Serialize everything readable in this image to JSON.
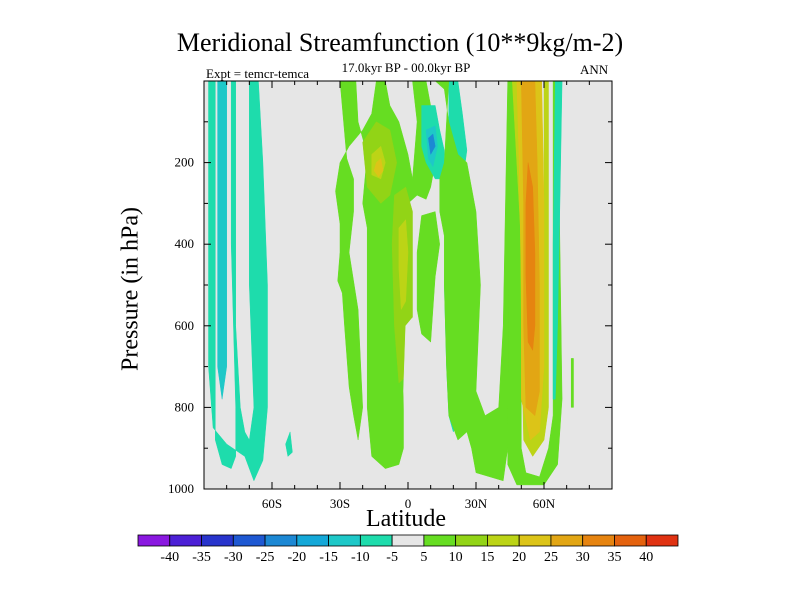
{
  "chart_data": {
    "type": "heatmap",
    "title": "Meridional Streamfunction (10**9kg/m-2)",
    "subtitle": "17.0kyr BP - 00.0kyr BP",
    "left_label": "Expt = temcr-temca",
    "right_label": "ANN",
    "xlabel": "Latitude",
    "ylabel": "Pressure (in hPa)",
    "xlim": [
      -90,
      90
    ],
    "ylim": [
      1000,
      0
    ],
    "x_ticks": [
      -60,
      -30,
      0,
      30,
      60
    ],
    "x_tick_labels": [
      "60S",
      "30S",
      "0",
      "30N",
      "60N"
    ],
    "y_ticks": [
      200,
      400,
      600,
      800,
      1000
    ],
    "y_tick_labels": [
      "200",
      "400",
      "600",
      "800",
      "1000"
    ],
    "background_color": "#e6e6e6",
    "colorbar": {
      "labels": [
        "-40",
        "-35",
        "-30",
        "-25",
        "-20",
        "-15",
        "-10",
        "-5",
        "5",
        "10",
        "15",
        "20",
        "25",
        "30",
        "35",
        "40"
      ],
      "colors": [
        "#8a18e0",
        "#4c20d6",
        "#2834cc",
        "#1e58d2",
        "#1c88d4",
        "#14a8d8",
        "#1ec8c8",
        "#1edcac",
        "#e6e6e6",
        "#66dd22",
        "#92d416",
        "#bcd416",
        "#dcc418",
        "#e2a614",
        "#e68410",
        "#e4620e",
        "#e03212"
      ]
    },
    "regions": [
      {
        "name": "sh-polar-cell-left",
        "color": "#1edcac",
        "points": [
          [
            -88,
            0
          ],
          [
            -85,
            0
          ],
          [
            -85,
            880
          ],
          [
            -82,
            940
          ],
          [
            -78,
            950
          ],
          [
            -76,
            920
          ],
          [
            -76,
            800
          ],
          [
            -78,
            400
          ],
          [
            -78,
            0
          ],
          [
            -76,
            0
          ],
          [
            -76,
            600
          ],
          [
            -74,
            800
          ],
          [
            -72,
            860
          ],
          [
            -70,
            880
          ],
          [
            -68,
            800
          ],
          [
            -70,
            500
          ],
          [
            -70,
            0
          ],
          [
            -66,
            0
          ],
          [
            -64,
            200
          ],
          [
            -62,
            500
          ],
          [
            -62,
            800
          ],
          [
            -64,
            930
          ],
          [
            -68,
            980
          ],
          [
            -72,
            920
          ],
          [
            -80,
            890
          ],
          [
            -86,
            850
          ],
          [
            -88,
            700
          ]
        ]
      },
      {
        "name": "sh-polar-cell-core",
        "color": "#1ec8c8",
        "points": [
          [
            -85,
            0
          ],
          [
            -84,
            0
          ],
          [
            -84,
            700
          ],
          [
            -82,
            780
          ],
          [
            -80,
            700
          ],
          [
            -80,
            0
          ]
        ]
      },
      {
        "name": "sh-isolated-dot",
        "color": "#1edcac",
        "points": [
          [
            -52,
            860
          ],
          [
            -51,
            910
          ],
          [
            -53,
            920
          ],
          [
            -54,
            890
          ]
        ]
      },
      {
        "name": "ferrel-green-band",
        "color": "#66dd22",
        "points": [
          [
            -30,
            0
          ],
          [
            -23,
            0
          ],
          [
            -22,
            100
          ],
          [
            -18,
            180
          ],
          [
            -20,
            300
          ],
          [
            -18,
            360
          ],
          [
            -18,
            800
          ],
          [
            -16,
            920
          ],
          [
            -10,
            950
          ],
          [
            -4,
            940
          ],
          [
            -2,
            900
          ],
          [
            -2,
            740
          ],
          [
            0,
            700
          ],
          [
            0,
            560
          ],
          [
            -2,
            460
          ],
          [
            -2,
            400
          ],
          [
            0,
            300
          ],
          [
            4,
            280
          ],
          [
            8,
            290
          ],
          [
            10,
            260
          ],
          [
            12,
            200
          ],
          [
            12,
            120
          ],
          [
            8,
            0
          ],
          [
            2,
            0
          ],
          [
            4,
            100
          ],
          [
            2,
            240
          ],
          [
            0,
            180
          ],
          [
            -4,
            100
          ],
          [
            -8,
            60
          ],
          [
            -10,
            0
          ],
          [
            -14,
            0
          ],
          [
            -16,
            80
          ],
          [
            -20,
            120
          ],
          [
            -26,
            160
          ],
          [
            -30,
            200
          ],
          [
            -32,
            270
          ],
          [
            -30,
            350
          ],
          [
            -30,
            420
          ],
          [
            -31,
            490
          ],
          [
            -29,
            520
          ],
          [
            -28,
            600
          ],
          [
            -26,
            750
          ],
          [
            -24,
            820
          ],
          [
            -22,
            880
          ],
          [
            -20,
            800
          ],
          [
            -22,
            560
          ],
          [
            -26,
            420
          ],
          [
            -24,
            320
          ],
          [
            -24,
            240
          ],
          [
            -27,
            190
          ]
        ]
      },
      {
        "name": "mid-yellow-cell",
        "color": "#92d416",
        "points": [
          [
            -20,
            150
          ],
          [
            -14,
            100
          ],
          [
            -8,
            120
          ],
          [
            -5,
            200
          ],
          [
            -8,
            280
          ],
          [
            -12,
            300
          ],
          [
            -18,
            260
          ]
        ]
      },
      {
        "name": "mid-yellow-core",
        "color": "#bcd416",
        "points": [
          [
            -16,
            180
          ],
          [
            -12,
            160
          ],
          [
            -10,
            200
          ],
          [
            -12,
            240
          ],
          [
            -16,
            230
          ]
        ]
      },
      {
        "name": "mid-orange-spot",
        "color": "#dcc418",
        "points": [
          [
            -14,
            200
          ],
          [
            -12,
            190
          ],
          [
            -11,
            220
          ],
          [
            -13,
            235
          ],
          [
            -15,
            220
          ]
        ]
      },
      {
        "name": "eq-yellow-strip",
        "color": "#92d416",
        "points": [
          [
            -6,
            280
          ],
          [
            -1,
            260
          ],
          [
            2,
            320
          ],
          [
            2,
            580
          ],
          [
            0,
            720
          ],
          [
            -4,
            740
          ],
          [
            -6,
            600
          ],
          [
            -7,
            400
          ]
        ]
      },
      {
        "name": "eq-yellow-core",
        "color": "#bcd416",
        "points": [
          [
            -4,
            360
          ],
          [
            -1,
            340
          ],
          [
            0,
            420
          ],
          [
            -1,
            540
          ],
          [
            -3,
            560
          ],
          [
            -4,
            460
          ]
        ]
      },
      {
        "name": "eq-light-gap",
        "color": "#e6e6e6",
        "points": [
          [
            -1,
            600
          ],
          [
            2,
            580
          ],
          [
            4,
            620
          ],
          [
            4,
            820
          ],
          [
            2,
            900
          ],
          [
            -1,
            900
          ],
          [
            -2,
            760
          ]
        ]
      },
      {
        "name": "nh-small-green",
        "color": "#66dd22",
        "points": [
          [
            6,
            330
          ],
          [
            12,
            320
          ],
          [
            14,
            400
          ],
          [
            12,
            480
          ],
          [
            10,
            640
          ],
          [
            6,
            620
          ],
          [
            4,
            560
          ],
          [
            4,
            420
          ]
        ]
      },
      {
        "name": "nh-blue-tongue",
        "color": "#1edcac",
        "points": [
          [
            6,
            60
          ],
          [
            12,
            60
          ],
          [
            14,
            120
          ],
          [
            16,
            170
          ],
          [
            16,
            240
          ],
          [
            12,
            240
          ],
          [
            8,
            200
          ],
          [
            6,
            160
          ]
        ]
      },
      {
        "name": "nh-blue-core",
        "color": "#1ec8c8",
        "points": [
          [
            8,
            120
          ],
          [
            12,
            110
          ],
          [
            13,
            160
          ],
          [
            11,
            210
          ],
          [
            9,
            190
          ]
        ]
      },
      {
        "name": "nh-dark-blue",
        "color": "#1c88d4",
        "points": [
          [
            9,
            140
          ],
          [
            11,
            130
          ],
          [
            12,
            160
          ],
          [
            10,
            180
          ]
        ]
      },
      {
        "name": "nh-hadley-blue",
        "color": "#1edcac",
        "points": [
          [
            18,
            0
          ],
          [
            22,
            0
          ],
          [
            24,
            80
          ],
          [
            26,
            170
          ],
          [
            24,
            250
          ],
          [
            26,
            320
          ],
          [
            28,
            400
          ],
          [
            30,
            480
          ],
          [
            30,
            560
          ],
          [
            28,
            660
          ],
          [
            26,
            760
          ],
          [
            24,
            820
          ],
          [
            20,
            860
          ],
          [
            18,
            820
          ],
          [
            17,
            700
          ],
          [
            16,
            500
          ],
          [
            17,
            300
          ],
          [
            18,
            180
          ]
        ]
      },
      {
        "name": "nh-hadley-core",
        "color": "#1ec8c8",
        "points": [
          [
            22,
            320
          ],
          [
            26,
            340
          ],
          [
            27,
            420
          ],
          [
            26,
            520
          ],
          [
            24,
            560
          ],
          [
            22,
            500
          ],
          [
            21,
            420
          ]
        ]
      },
      {
        "name": "nh-green-mid",
        "color": "#66dd22",
        "points": [
          [
            12,
            0
          ],
          [
            18,
            0
          ],
          [
            17,
            100
          ],
          [
            16,
            200
          ],
          [
            14,
            240
          ],
          [
            14,
            320
          ],
          [
            16,
            380
          ],
          [
            16,
            500
          ],
          [
            17,
            700
          ],
          [
            18,
            820
          ],
          [
            22,
            880
          ],
          [
            26,
            860
          ],
          [
            28,
            900
          ],
          [
            30,
            960
          ],
          [
            42,
            980
          ],
          [
            44,
            900
          ],
          [
            46,
            0
          ],
          [
            44,
            0
          ],
          [
            42,
            600
          ],
          [
            40,
            800
          ],
          [
            34,
            820
          ],
          [
            30,
            760
          ],
          [
            32,
            500
          ],
          [
            30,
            320
          ],
          [
            26,
            200
          ],
          [
            22,
            180
          ],
          [
            18,
            100
          ],
          [
            16,
            20
          ]
        ]
      },
      {
        "name": "nh-polar-green",
        "color": "#66dd22",
        "points": [
          [
            45,
            0
          ],
          [
            50,
            0
          ],
          [
            50,
            900
          ],
          [
            52,
            960
          ],
          [
            58,
            970
          ],
          [
            62,
            900
          ],
          [
            64,
            820
          ],
          [
            64,
            0
          ],
          [
            66,
            0
          ],
          [
            68,
            780
          ],
          [
            66,
            940
          ],
          [
            60,
            990
          ],
          [
            48,
            990
          ],
          [
            44,
            940
          ]
        ]
      },
      {
        "name": "nh-polar-yellow",
        "color": "#bcd416",
        "points": [
          [
            46,
            0
          ],
          [
            49,
            0
          ],
          [
            50,
            600
          ],
          [
            51,
            880
          ],
          [
            55,
            920
          ],
          [
            60,
            880
          ],
          [
            62,
            800
          ],
          [
            62,
            0
          ],
          [
            60,
            0
          ],
          [
            60,
            700
          ],
          [
            56,
            780
          ],
          [
            52,
            700
          ],
          [
            50,
            400
          ],
          [
            48,
            200
          ]
        ]
      },
      {
        "name": "nh-polar-gold",
        "color": "#dcc418",
        "points": [
          [
            48,
            0
          ],
          [
            59,
            0
          ],
          [
            60,
            300
          ],
          [
            60,
            700
          ],
          [
            58,
            860
          ],
          [
            54,
            880
          ],
          [
            50,
            780
          ],
          [
            50,
            500
          ],
          [
            49,
            200
          ]
        ]
      },
      {
        "name": "nh-polar-orange",
        "color": "#e2a614",
        "points": [
          [
            50,
            0
          ],
          [
            56,
            0
          ],
          [
            57,
            200
          ],
          [
            58,
            500
          ],
          [
            58,
            760
          ],
          [
            56,
            820
          ],
          [
            52,
            800
          ],
          [
            51,
            600
          ],
          [
            51,
            300
          ]
        ]
      },
      {
        "name": "nh-polar-dark-orange",
        "color": "#e68410",
        "points": [
          [
            53,
            200
          ],
          [
            55,
            260
          ],
          [
            56,
            420
          ],
          [
            56,
            600
          ],
          [
            55,
            660
          ],
          [
            53,
            640
          ],
          [
            52,
            480
          ],
          [
            52,
            300
          ]
        ]
      },
      {
        "name": "nh-polar-thin-blue",
        "color": "#1edcac",
        "points": [
          [
            65,
            0
          ],
          [
            68,
            0
          ],
          [
            67,
            300
          ],
          [
            66,
            600
          ],
          [
            65,
            780
          ],
          [
            64,
            780
          ],
          [
            64,
            400
          ]
        ]
      },
      {
        "name": "nh-far-tick",
        "color": "#66dd22",
        "points": [
          [
            72,
            680
          ],
          [
            73,
            680
          ],
          [
            73,
            800
          ],
          [
            72,
            800
          ]
        ]
      }
    ]
  }
}
